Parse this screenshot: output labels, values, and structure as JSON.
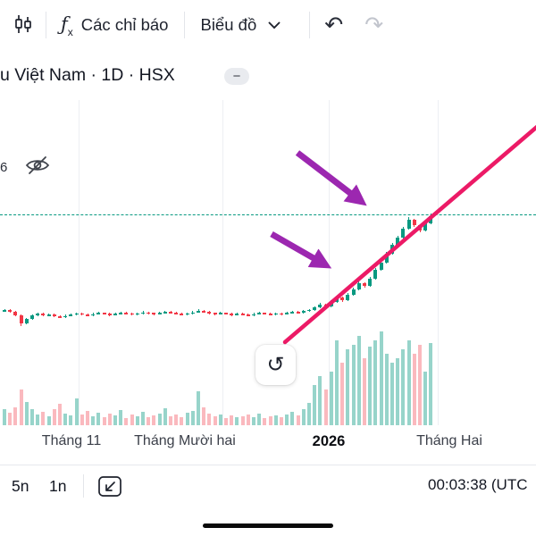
{
  "toolbar": {
    "indicators_label": "Các chỉ báo",
    "chart_label": "Biểu đồ",
    "fx": {
      "f": "ƒ",
      "x": "x"
    },
    "undo_glyph": "↶",
    "redo_glyph": "↷"
  },
  "symbol_row": {
    "title": "u Việt Nam · 1D · HSX",
    "collapse_glyph": "−"
  },
  "legend": {
    "clipped_text": "6"
  },
  "reset_button": {
    "glyph": "↺"
  },
  "x_axis": {
    "labels": [
      "Tháng 11",
      "Tháng Mười hai",
      "2026",
      "Tháng Hai"
    ]
  },
  "bottom_bar": {
    "intervals": [
      "5n",
      "1n"
    ],
    "clock": "00:03:38 (UTC"
  },
  "chart_data": {
    "type": "candlestick",
    "title": "u Việt Nam · 1D · HSX",
    "timeframe": "1D",
    "exchange": "HSX",
    "x_axis_labels": [
      "Tháng 11",
      "Tháng Mười hai",
      "2026",
      "Tháng Hai"
    ],
    "price_dotted_level": 128.1,
    "colors": {
      "up": "#089981",
      "down": "#f23645",
      "volume_up": "rgba(8,153,129,0.42)",
      "volume_down": "rgba(242,54,69,0.35)",
      "trend_line": "#ec1a66",
      "arrows": "#9c27b0",
      "dotted_line": "#089981"
    },
    "candles": [
      [
        101.0,
        101.6,
        100.8,
        101.2,
        18
      ],
      [
        101.2,
        101.4,
        100.5,
        100.8,
        14
      ],
      [
        100.8,
        101.0,
        99.6,
        99.8,
        20
      ],
      [
        99.8,
        100.0,
        96.8,
        97.4,
        40
      ],
      [
        97.4,
        99.0,
        97.2,
        98.7,
        26
      ],
      [
        98.7,
        100.0,
        98.5,
        99.8,
        18
      ],
      [
        99.8,
        100.4,
        99.5,
        100.2,
        12
      ],
      [
        100.2,
        100.5,
        99.5,
        99.8,
        15
      ],
      [
        99.8,
        100.3,
        99.6,
        100.0,
        10
      ],
      [
        100.0,
        100.2,
        99.2,
        99.5,
        18
      ],
      [
        99.5,
        99.8,
        98.9,
        99.2,
        24
      ],
      [
        99.2,
        99.9,
        99.0,
        99.6,
        13
      ],
      [
        99.6,
        100.2,
        99.4,
        99.9,
        11
      ],
      [
        99.9,
        100.6,
        99.7,
        100.3,
        30
      ],
      [
        100.3,
        100.5,
        99.8,
        100.0,
        12
      ],
      [
        100.0,
        100.2,
        99.4,
        99.7,
        16
      ],
      [
        99.7,
        100.4,
        99.5,
        100.1,
        10
      ],
      [
        100.1,
        100.7,
        99.9,
        100.4,
        14
      ],
      [
        100.4,
        100.6,
        99.9,
        100.2,
        9
      ],
      [
        100.2,
        100.4,
        99.6,
        99.9,
        13
      ],
      [
        99.9,
        100.5,
        99.7,
        100.2,
        11
      ],
      [
        100.2,
        100.8,
        100.0,
        100.5,
        17
      ],
      [
        100.5,
        100.7,
        100.0,
        100.3,
        8
      ],
      [
        100.3,
        100.5,
        99.7,
        100.0,
        12
      ],
      [
        100.0,
        100.6,
        99.8,
        100.3,
        10
      ],
      [
        100.3,
        100.9,
        100.1,
        100.6,
        15
      ],
      [
        100.6,
        100.8,
        100.1,
        100.4,
        9
      ],
      [
        100.4,
        100.6,
        99.8,
        100.1,
        11
      ],
      [
        100.1,
        100.7,
        99.9,
        100.4,
        13
      ],
      [
        100.4,
        101.0,
        100.2,
        100.7,
        19
      ],
      [
        100.7,
        100.9,
        100.2,
        100.5,
        10
      ],
      [
        100.5,
        100.7,
        99.9,
        100.2,
        12
      ],
      [
        100.2,
        100.4,
        99.7,
        100.0,
        9
      ],
      [
        100.0,
        100.6,
        99.8,
        100.3,
        14
      ],
      [
        100.3,
        100.9,
        100.1,
        100.6,
        16
      ],
      [
        100.6,
        101.4,
        100.4,
        101.0,
        38
      ],
      [
        101.0,
        101.2,
        100.4,
        100.7,
        20
      ],
      [
        100.7,
        100.9,
        100.1,
        100.4,
        13
      ],
      [
        100.4,
        100.6,
        99.8,
        100.1,
        10
      ],
      [
        100.1,
        100.7,
        99.9,
        100.4,
        12
      ],
      [
        100.4,
        100.6,
        99.9,
        100.2,
        8
      ],
      [
        100.2,
        100.4,
        99.6,
        99.9,
        11
      ],
      [
        99.9,
        100.5,
        99.7,
        100.2,
        9
      ],
      [
        100.2,
        100.4,
        99.7,
        100.0,
        10
      ],
      [
        100.0,
        100.2,
        99.5,
        99.8,
        12
      ],
      [
        99.8,
        100.4,
        99.6,
        100.1,
        9
      ],
      [
        100.1,
        100.7,
        99.9,
        100.4,
        13
      ],
      [
        100.4,
        100.6,
        99.9,
        100.2,
        8
      ],
      [
        100.2,
        100.4,
        99.7,
        100.0,
        10
      ],
      [
        100.0,
        100.6,
        99.8,
        100.3,
        11
      ],
      [
        100.3,
        100.5,
        99.8,
        100.1,
        9
      ],
      [
        100.1,
        100.7,
        99.9,
        100.4,
        12
      ],
      [
        100.4,
        101.0,
        100.2,
        100.7,
        15
      ],
      [
        100.7,
        100.9,
        100.2,
        100.5,
        11
      ],
      [
        100.5,
        101.2,
        100.3,
        100.9,
        18
      ],
      [
        100.9,
        101.6,
        100.7,
        101.3,
        25
      ],
      [
        101.3,
        102.3,
        101.1,
        102.0,
        45
      ],
      [
        102.0,
        103.2,
        101.8,
        102.8,
        55
      ],
      [
        102.8,
        103.0,
        101.9,
        102.2,
        40
      ],
      [
        102.2,
        103.9,
        102.0,
        103.5,
        60
      ],
      [
        103.5,
        105.2,
        103.3,
        104.8,
        95
      ],
      [
        104.8,
        105.0,
        103.6,
        104.0,
        70
      ],
      [
        104.0,
        105.9,
        103.8,
        105.5,
        85
      ],
      [
        105.5,
        107.4,
        105.3,
        107.0,
        90
      ],
      [
        107.0,
        109.3,
        106.8,
        108.8,
        100
      ],
      [
        108.8,
        109.0,
        107.5,
        108.0,
        75
      ],
      [
        108.0,
        110.5,
        107.8,
        110.0,
        88
      ],
      [
        110.0,
        113.0,
        109.8,
        112.5,
        95
      ],
      [
        112.5,
        115.0,
        112.3,
        114.5,
        105
      ],
      [
        114.5,
        117.5,
        114.3,
        117.0,
        80
      ],
      [
        117.0,
        120.0,
        116.8,
        119.5,
        70
      ],
      [
        119.5,
        122.0,
        119.3,
        121.5,
        75
      ],
      [
        121.5,
        124.5,
        121.3,
        124.0,
        85
      ],
      [
        124.0,
        127.2,
        123.8,
        126.5,
        95
      ],
      [
        126.5,
        126.8,
        124.4,
        125.0,
        80
      ],
      [
        125.0,
        125.3,
        122.9,
        123.5,
        90
      ],
      [
        123.5,
        126.0,
        123.3,
        125.5,
        60
      ],
      [
        125.5,
        128.2,
        125.2,
        127.5,
        92
      ]
    ],
    "annotations": {
      "trend_line": {
        "from": [
          319,
          383
        ],
        "to": [
          601,
          142
        ]
      },
      "arrows": [
        {
          "from": [
            333,
            171
          ],
          "to": [
            405,
            226
          ]
        },
        {
          "from": [
            304,
            262
          ],
          "to": [
            365,
            297
          ]
        }
      ]
    }
  }
}
